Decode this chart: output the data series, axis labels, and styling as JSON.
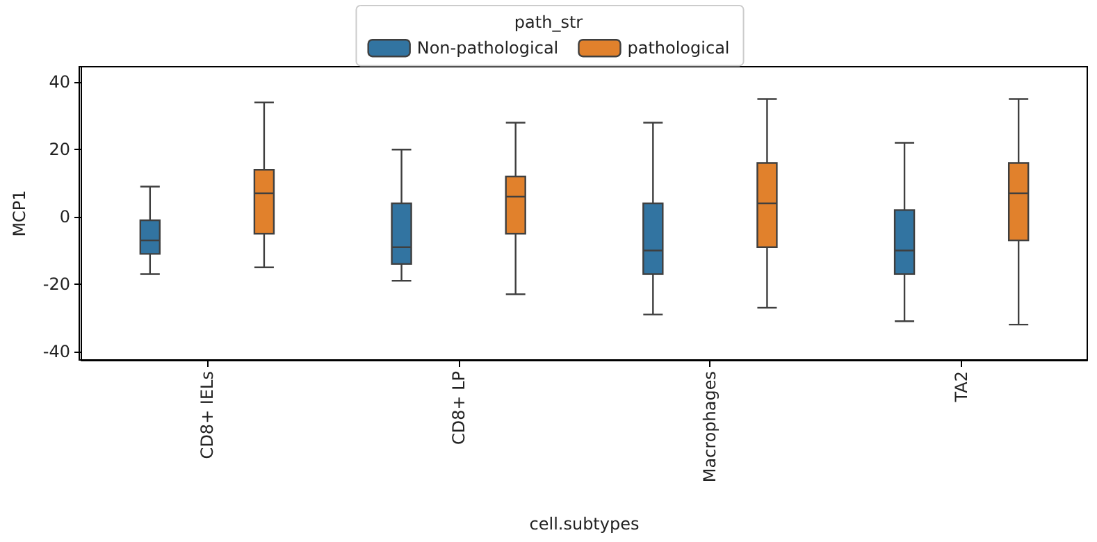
{
  "chart_data": {
    "type": "box",
    "xlabel": "cell.subtypes",
    "ylabel": "MCP1",
    "legend_title": "path_str",
    "categories": [
      "CD8+ IELs",
      "CD8+ LP",
      "Macrophages",
      "TA2"
    ],
    "series": [
      {
        "name": "Non-pathological",
        "color": "#3274a1",
        "boxes": [
          {
            "low": -17,
            "q1": -11,
            "median": -7,
            "q3": -1,
            "high": 9
          },
          {
            "low": -19,
            "q1": -14,
            "median": -9,
            "q3": 4,
            "high": 20
          },
          {
            "low": -29,
            "q1": -17,
            "median": -10,
            "q3": 4,
            "high": 28
          },
          {
            "low": -31,
            "q1": -17,
            "median": -10,
            "q3": 2,
            "high": 22
          }
        ]
      },
      {
        "name": "pathological",
        "color": "#e1812c",
        "boxes": [
          {
            "low": -15,
            "q1": -5,
            "median": 7,
            "q3": 14,
            "high": 34
          },
          {
            "low": -23,
            "q1": -5,
            "median": 6,
            "q3": 12,
            "high": 28
          },
          {
            "low": -27,
            "q1": -9,
            "median": 4,
            "q3": 16,
            "high": 35
          },
          {
            "low": -32,
            "q1": -7,
            "median": 7,
            "q3": 16,
            "high": 35
          }
        ]
      }
    ],
    "ylim": [
      -42.5,
      44.6
    ],
    "yticks": [
      -40,
      -20,
      0,
      20,
      40
    ],
    "legend": "top"
  }
}
